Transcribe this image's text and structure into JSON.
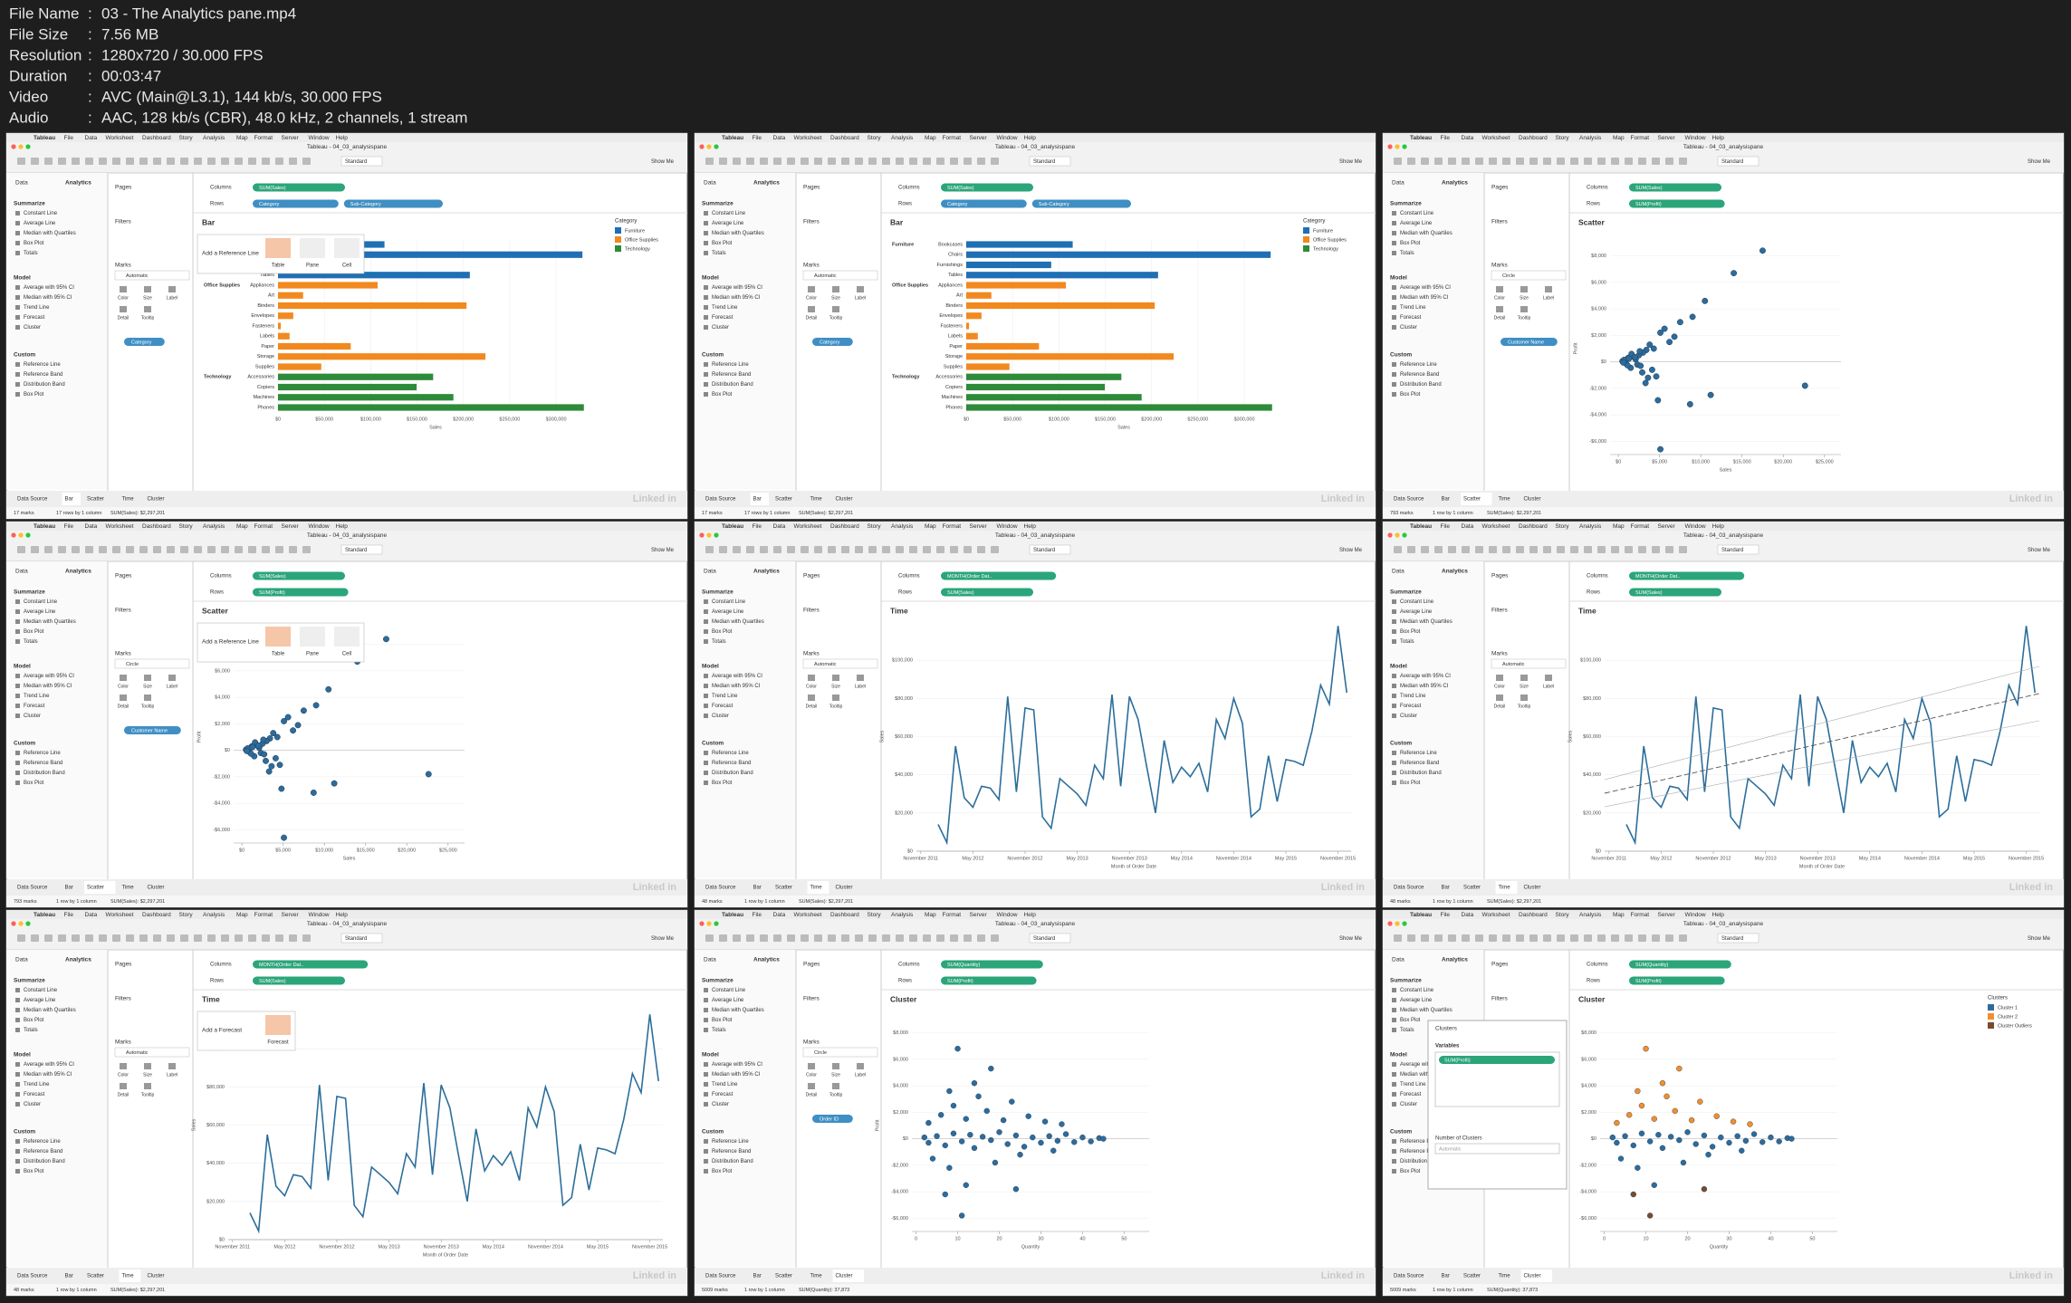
{
  "file_info": {
    "separator": ":",
    "entries": [
      {
        "label": "File Name",
        "value": "03 - The Analytics pane.mp4"
      },
      {
        "label": "File Size",
        "value": "7.56 MB"
      },
      {
        "label": "Resolution",
        "value": "1280x720 / 30.000 FPS"
      },
      {
        "label": "Duration",
        "value": "00:03:47"
      },
      {
        "label": "Video",
        "value": "AVC (Main@L3.1), 144 kb/s, 30.000 FPS"
      },
      {
        "label": "Audio",
        "value": "AAC, 128 kb/s (CBR), 48.0 kHz, 2 channels, 1 stream"
      }
    ]
  },
  "ui": {
    "menu": [
      "Tableau",
      "File",
      "Data",
      "Worksheet",
      "Dashboard",
      "Story",
      "Analysis",
      "Map",
      "Format",
      "Server",
      "Window",
      "Help"
    ],
    "window_title": "Tableau - 04_03_analysispane",
    "pane_tabs": [
      "Data",
      "Analytics"
    ],
    "summarize": "Summarize",
    "summarize_items": [
      "Constant Line",
      "Average Line",
      "Median with Quartiles",
      "Box Plot",
      "Totals"
    ],
    "model": "Model",
    "model_items": [
      "Average with 95% CI",
      "Median with 95% CI",
      "Trend Line",
      "Forecast",
      "Cluster"
    ],
    "custom": "Custom",
    "custom_items": [
      "Reference Line",
      "Reference Band",
      "Distribution Band",
      "Box Plot"
    ],
    "pages": "Pages",
    "filters": "Filters",
    "marks": "Marks",
    "columns": "Columns",
    "rows": "Rows",
    "show_me": "Show Me",
    "standard": "Standard",
    "mark_cards": [
      "Color",
      "Size",
      "Label",
      "Detail",
      "Tooltip"
    ],
    "sheet_tabs": [
      "Data Source",
      "Bar",
      "Scatter",
      "Time",
      "Cluster"
    ],
    "watermark": "Linked in",
    "pill_colors": {
      "measure": "#2ba57a",
      "dimension": "#3f8fc4"
    }
  },
  "bar_chart": {
    "legend_title": "Category",
    "groups": [
      {
        "name": "Furniture",
        "color": "#1f6fb4",
        "categories": [
          "Bookcases",
          "Chairs",
          "Furnishings",
          "Tables"
        ],
        "values": [
          114880,
          328449,
          91705,
          206966
        ]
      },
      {
        "name": "Office Supplies",
        "color": "#f2891f",
        "categories": [
          "Appliances",
          "Art",
          "Binders",
          "Envelopes",
          "Fasteners",
          "Labels",
          "Paper",
          "Storage",
          "Supplies"
        ],
        "values": [
          107532,
          27119,
          203413,
          16476,
          3024,
          12486,
          78479,
          223844,
          46674
        ]
      },
      {
        "name": "Technology",
        "color": "#2e8b3a",
        "categories": [
          "Accessories",
          "Copiers",
          "Machines",
          "Phones"
        ],
        "values": [
          167380,
          149528,
          189239,
          330007
        ]
      }
    ],
    "xlim": [
      0,
      340000
    ],
    "xticks": [
      {
        "value": 0,
        "label": "$0"
      },
      {
        "value": 50000,
        "label": "$50,000"
      },
      {
        "value": 100000,
        "label": "$100,000"
      },
      {
        "value": 150000,
        "label": "$150,000"
      },
      {
        "value": 200000,
        "label": "$200,000"
      },
      {
        "value": 250000,
        "label": "$250,000"
      },
      {
        "value": 300000,
        "label": "$300,000"
      }
    ],
    "xlabel": "Sales"
  },
  "scatter_chart": {
    "x": [
      1200,
      2300,
      800,
      3400,
      4100,
      500,
      1800,
      2700,
      6200,
      5100,
      900,
      3000,
      1500,
      2100,
      4600,
      700,
      3800,
      2500,
      7500,
      1100,
      13999,
      17499,
      22638,
      8700,
      10500,
      1600,
      2900,
      4300,
      600,
      3300,
      5600,
      2000,
      11200,
      9000,
      4800,
      1300,
      2600,
      3600,
      6800,
      5100
    ],
    "y": [
      300,
      -200,
      100,
      900,
      -600,
      50,
      400,
      -300,
      1500,
      2200,
      -100,
      700,
      -450,
      200,
      -1100,
      150,
      1300,
      500,
      3000,
      -250,
      6700,
      8400,
      -1800,
      -3200,
      4600,
      600,
      -800,
      1000,
      -50,
      -1600,
      2500,
      350,
      -2500,
      3400,
      -2900,
      250,
      800,
      -1200,
      1900,
      -6600
    ],
    "color": "#2f6b9a",
    "xlim": [
      -1000,
      27000
    ],
    "ylim": [
      -7000,
      9000
    ],
    "xticks": [
      {
        "value": 0,
        "label": "$0"
      },
      {
        "value": 5000,
        "label": "$5,000"
      },
      {
        "value": 10000,
        "label": "$10,000"
      },
      {
        "value": 15000,
        "label": "$15,000"
      },
      {
        "value": 20000,
        "label": "$20,000"
      },
      {
        "value": 25000,
        "label": "$25,000"
      }
    ],
    "yticks": [
      {
        "value": -6000,
        "label": "-$6,000"
      },
      {
        "value": -4000,
        "label": "-$4,000"
      },
      {
        "value": -2000,
        "label": "-$2,000"
      },
      {
        "value": 0,
        "label": "$0"
      },
      {
        "value": 2000,
        "label": "$2,000"
      },
      {
        "value": 4000,
        "label": "$4,000"
      },
      {
        "value": 6000,
        "label": "$6,000"
      },
      {
        "value": 8000,
        "label": "$8,000"
      }
    ],
    "xlabel": "Sales",
    "ylabel": "Profit"
  },
  "time_chart": {
    "values": [
      14000,
      4500,
      55000,
      28000,
      23000,
      34000,
      33000,
      27000,
      81000,
      31000,
      75000,
      74000,
      18000,
      12000,
      38000,
      34000,
      30000,
      24000,
      45000,
      38000,
      82000,
      34000,
      81000,
      69000,
      44000,
      20000,
      58000,
      36000,
      44000,
      39000,
      46000,
      31000,
      69000,
      59000,
      80000,
      67000,
      18000,
      22000,
      50000,
      26000,
      48000,
      47000,
      45000,
      63000,
      87000,
      77000,
      118000,
      83000
    ],
    "color": "#2c6e9b",
    "xlim": [
      -2.5,
      47.5
    ],
    "ylim": [
      0,
      120000
    ],
    "xticks": [
      {
        "value": -2,
        "label": "November 2011"
      },
      {
        "value": 4,
        "label": "May 2012"
      },
      {
        "value": 10,
        "label": "November 2012"
      },
      {
        "value": 16,
        "label": "May 2013"
      },
      {
        "value": 22,
        "label": "November 2013"
      },
      {
        "value": 28,
        "label": "May 2014"
      },
      {
        "value": 34,
        "label": "November 2014"
      },
      {
        "value": 40,
        "label": "May 2015"
      },
      {
        "value": 46,
        "label": "November 2015"
      }
    ],
    "yticks": [
      {
        "value": 0,
        "label": "$0"
      },
      {
        "value": 20000,
        "label": "$20,000"
      },
      {
        "value": 40000,
        "label": "$40,000"
      },
      {
        "value": 60000,
        "label": "$60,000"
      },
      {
        "value": 80000,
        "label": "$80,000"
      },
      {
        "value": 100000,
        "label": "$100,000"
      }
    ],
    "xlabel": "Month of Order Date",
    "ylabel": "Sales"
  },
  "cluster_chart": {
    "legend_title": "Clusters",
    "plain_color": "#2f6b9a",
    "series": [
      {
        "name": "Cluster 1",
        "color": "#2f6b9a",
        "x": [
          2,
          3,
          5,
          7,
          9,
          11,
          13,
          14,
          16,
          18,
          20,
          22,
          24,
          26,
          28,
          30,
          32,
          34,
          36,
          38,
          40,
          42,
          44,
          45,
          4,
          8,
          12,
          19,
          25,
          33
        ],
        "y": [
          100,
          -300,
          200,
          -500,
          400,
          -200,
          300,
          -700,
          150,
          -100,
          500,
          -400,
          250,
          -600,
          100,
          -300,
          200,
          -150,
          350,
          -250,
          100,
          -200,
          50,
          0,
          -1500,
          -2200,
          -3500,
          -1800,
          -1200,
          -900
        ]
      },
      {
        "name": "Cluster 2",
        "color": "#f28e2b",
        "x": [
          3,
          6,
          9,
          12,
          15,
          17,
          21,
          23,
          27,
          31,
          35,
          14,
          18,
          10,
          8
        ],
        "y": [
          1200,
          1800,
          2500,
          1500,
          3200,
          2100,
          1400,
          2800,
          1700,
          1300,
          1100,
          4200,
          5300,
          6800,
          3600
        ]
      },
      {
        "name": "Cluster Outliers",
        "color": "#7b4a2d",
        "x": [
          7,
          11,
          24
        ],
        "y": [
          -4200,
          -5800,
          -3800
        ]
      }
    ],
    "xlim": [
      -1,
      56
    ],
    "ylim": [
      -7000,
      9000
    ],
    "xticks": [
      0,
      10,
      20,
      30,
      40,
      50
    ],
    "yticks": [
      {
        "value": -6000,
        "label": "-$6,000"
      },
      {
        "value": -4000,
        "label": "-$4,000"
      },
      {
        "value": -2000,
        "label": "-$2,000"
      },
      {
        "value": 0,
        "label": "$0"
      },
      {
        "value": 2000,
        "label": "$2,000"
      },
      {
        "value": 4000,
        "label": "$4,000"
      },
      {
        "value": 6000,
        "label": "$6,000"
      },
      {
        "value": 8000,
        "label": "$8,000"
      }
    ],
    "xlabel": "Quantity",
    "ylabel": "Profit"
  },
  "frames": [
    {
      "chart": "bar",
      "title": "Bar",
      "columns": [
        {
          "text": "SUM(Sales)",
          "kind": "measure"
        }
      ],
      "rows": [
        {
          "text": "Category",
          "kind": "dimension"
        },
        {
          "text": "Sub-Category",
          "kind": "dimension"
        }
      ],
      "marks_type": "Automatic",
      "marks_pill": "Category",
      "active_tab": 1,
      "status": [
        "17 marks",
        "17 rows by 1 column",
        "SUM(Sales): $2,297,201"
      ],
      "overlay": {
        "title": "Add a Reference Line",
        "options": [
          "Table",
          "Pane",
          "Cell"
        ]
      }
    },
    {
      "chart": "bar",
      "title": "Bar",
      "columns": [
        {
          "text": "SUM(Sales)",
          "kind": "measure"
        }
      ],
      "rows": [
        {
          "text": "Category",
          "kind": "dimension"
        },
        {
          "text": "Sub-Category",
          "kind": "dimension"
        }
      ],
      "marks_type": "Automatic",
      "marks_pill": "Category",
      "active_tab": 1,
      "status": [
        "17 marks",
        "17 rows by 1 column",
        "SUM(Sales): $2,297,201"
      ]
    },
    {
      "chart": "scatter",
      "title": "Scatter",
      "columns": [
        {
          "text": "SUM(Sales)",
          "kind": "measure"
        }
      ],
      "rows": [
        {
          "text": "SUM(Profit)",
          "kind": "measure"
        }
      ],
      "marks_type": "Circle",
      "marks_pill": "Customer Name",
      "active_tab": 2,
      "status": [
        "793 marks",
        "1 row by 1 column",
        "SUM(Sales): $2,297,201"
      ]
    },
    {
      "chart": "scatter",
      "title": "Scatter",
      "columns": [
        {
          "text": "SUM(Sales)",
          "kind": "measure"
        }
      ],
      "rows": [
        {
          "text": "SUM(Profit)",
          "kind": "measure"
        }
      ],
      "marks_type": "Circle",
      "marks_pill": "Customer Name",
      "active_tab": 2,
      "status": [
        "793 marks",
        "1 row by 1 column",
        "SUM(Sales): $2,297,201"
      ],
      "overlay": {
        "title": "Add a Reference Line",
        "options": [
          "Table",
          "Pane",
          "Cell"
        ]
      }
    },
    {
      "chart": "line",
      "title": "Time",
      "columns": [
        {
          "text": "MONTH(Order Dat..",
          "kind": "measure"
        }
      ],
      "rows": [
        {
          "text": "SUM(Sales)",
          "kind": "measure"
        }
      ],
      "marks_type": "Automatic",
      "active_tab": 3,
      "status": [
        "48 marks",
        "1 row by 1 column",
        "SUM(Sales): $2,297,201"
      ]
    },
    {
      "chart": "line",
      "title": "Time",
      "columns": [
        {
          "text": "MONTH(Order Dat..",
          "kind": "measure"
        }
      ],
      "rows": [
        {
          "text": "SUM(Sales)",
          "kind": "measure"
        }
      ],
      "marks_type": "Automatic",
      "active_tab": 3,
      "status": [
        "48 marks",
        "1 row by 1 column",
        "SUM(Sales): $2,297,201"
      ],
      "trend": true
    },
    {
      "chart": "line",
      "title": "Time",
      "columns": [
        {
          "text": "MONTH(Order Dat..",
          "kind": "measure"
        }
      ],
      "rows": [
        {
          "text": "SUM(Sales)",
          "kind": "measure"
        }
      ],
      "marks_type": "Automatic",
      "active_tab": 3,
      "status": [
        "48 marks",
        "1 row by 1 column",
        "SUM(Sales): $2,297,201"
      ],
      "overlay": {
        "title": "Add a Forecast",
        "options": [
          "Forecast"
        ]
      }
    },
    {
      "chart": "cluster",
      "title": "Cluster",
      "columns": [
        {
          "text": "SUM(Quantity)",
          "kind": "measure"
        }
      ],
      "rows": [
        {
          "text": "SUM(Profit)",
          "kind": "measure"
        }
      ],
      "marks_type": "Circle",
      "marks_pill": "Order ID",
      "active_tab": 4,
      "status": [
        "5009 marks",
        "1 row by 1 column",
        "SUM(Quantity): 37,873"
      ],
      "color_by_cluster": false
    },
    {
      "chart": "cluster",
      "title": "Cluster",
      "columns": [
        {
          "text": "SUM(Quantity)",
          "kind": "measure"
        }
      ],
      "rows": [
        {
          "text": "SUM(Profit)",
          "kind": "measure"
        }
      ],
      "marks_type": "Circle",
      "active_tab": 4,
      "status": [
        "5009 marks",
        "1 row by 1 column",
        "SUM(Quantity): 37,873"
      ],
      "color_by_cluster": true,
      "dialog": {
        "title": "Clusters",
        "variables": "Variables",
        "variable": "SUM(Profit)",
        "count_label": "Number of Clusters",
        "count_value": "Automatic"
      }
    }
  ]
}
